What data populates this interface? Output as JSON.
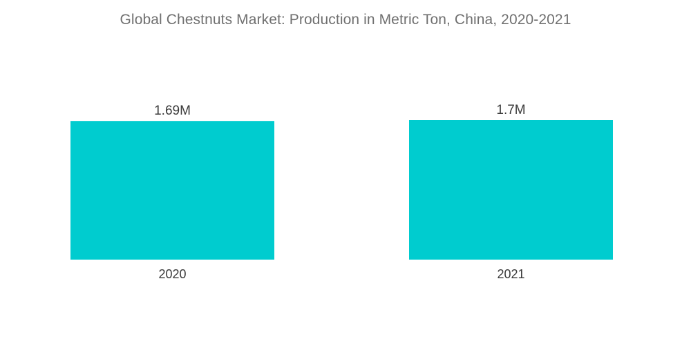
{
  "chart_data": {
    "type": "bar",
    "title": "Global Chestnuts Market: Production in Metric Ton, China, 2020-2021",
    "categories": [
      "2020",
      "2021"
    ],
    "values": [
      1690000,
      1700000
    ],
    "data_labels": [
      "1.69M",
      "1.7M"
    ],
    "xlabel": "",
    "ylabel": "",
    "ylim": [
      0,
      1700000
    ],
    "grid": false,
    "legend": "none",
    "bar_color": "#00CCCF"
  }
}
